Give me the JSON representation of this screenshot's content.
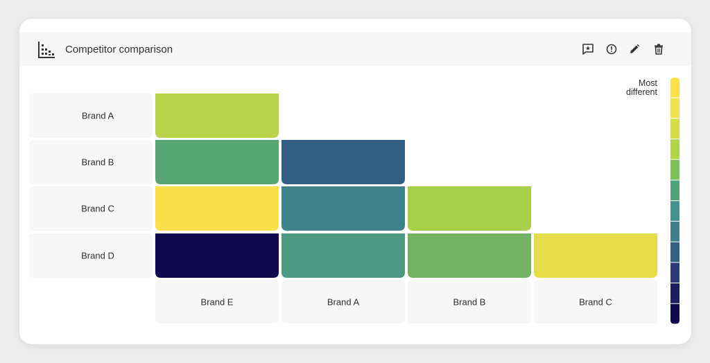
{
  "header": {
    "title": "Competitor comparison",
    "icons": [
      "bar-chart-icon",
      "comment-icon",
      "info-icon",
      "pencil-icon",
      "trash-icon"
    ]
  },
  "legend": {
    "label": "Most different",
    "colors": [
      "#fbe24a",
      "#f3e150",
      "#d5dc48",
      "#b0d44a",
      "#7ebe57",
      "#52a277",
      "#45918d",
      "#3f7d8a",
      "#365e81",
      "#2c3c72",
      "#1d1e5a",
      "#120a4f"
    ]
  },
  "chart_data": {
    "type": "heatmap",
    "rows": [
      "Brand A",
      "Brand B",
      "Brand C",
      "Brand D"
    ],
    "columns": [
      "Brand E",
      "Brand A",
      "Brand B",
      "Brand C"
    ],
    "cells": [
      {
        "row": "Brand A",
        "col": "Brand E",
        "color": "#bad34a"
      },
      {
        "row": "Brand B",
        "col": "Brand E",
        "color": "#58a574"
      },
      {
        "row": "Brand B",
        "col": "Brand A",
        "color": "#325e83"
      },
      {
        "row": "Brand C",
        "col": "Brand E",
        "color": "#fae04a"
      },
      {
        "row": "Brand C",
        "col": "Brand A",
        "color": "#40828c"
      },
      {
        "row": "Brand C",
        "col": "Brand B",
        "color": "#a8cf4a"
      },
      {
        "row": "Brand D",
        "col": "Brand E",
        "color": "#120a4f"
      },
      {
        "row": "Brand D",
        "col": "Brand A",
        "color": "#4c9a82"
      },
      {
        "row": "Brand D",
        "col": "Brand B",
        "color": "#72b262"
      },
      {
        "row": "Brand D",
        "col": "Brand C",
        "color": "#e6dc48"
      }
    ]
  }
}
